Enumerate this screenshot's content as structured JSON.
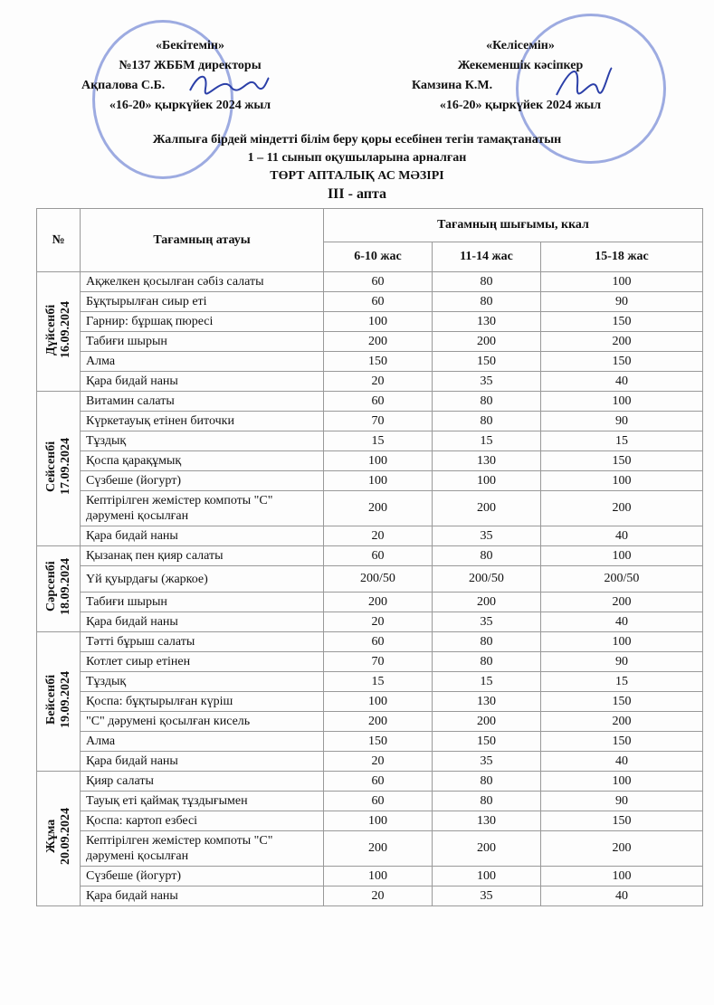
{
  "approve": {
    "title": "«Бекітемін»",
    "role": "№137 ЖББМ директоры",
    "name": "Ақпалова С.Б.",
    "date": "«16-20» қыркүйек 2024 жыл"
  },
  "agree": {
    "title": "«Келісемін»",
    "role": "Жекеменшік кәсіпкер",
    "name": "Камзина К.М.",
    "date": "«16-20» қыркүйек 2024 жыл"
  },
  "titles": [
    "Жалпыға бірдей міндетті білім беру қоры есебінен тегін тамақтанатын",
    "1 – 11 сынып оқушыларына арналған",
    "ТӨРТ АПТАЛЫҚ АС МӘЗІРІ",
    "III - апта"
  ],
  "table": {
    "col_no": "№",
    "col_name": "Тағамның атауы",
    "col_group": "Тағамның шығымы, ккал",
    "ages": [
      "6-10 жас",
      "11-14 жас",
      "15-18 жас"
    ],
    "days": [
      {
        "day": "Дүйсенбі",
        "date": "16.09.2024",
        "rows": [
          [
            "Ақжелкен қосылған сәбіз салаты",
            "60",
            "80",
            "100"
          ],
          [
            "Бұқтырылған сиыр еті",
            "60",
            "80",
            "90"
          ],
          [
            "Гарнир: бұршақ пюресі",
            "100",
            "130",
            "150"
          ],
          [
            "Табиғи шырын",
            "200",
            "200",
            "200"
          ],
          [
            "Алма",
            "150",
            "150",
            "150"
          ],
          [
            "Қара бидай наны",
            "20",
            "35",
            "40"
          ]
        ]
      },
      {
        "day": "Сейсенбі",
        "date": "17.09.2024",
        "rows": [
          [
            "Витамин салаты",
            "60",
            "80",
            "100"
          ],
          [
            "Күркетауық етінен биточки",
            "70",
            "80",
            "90"
          ],
          [
            "Тұздық",
            "15",
            "15",
            "15"
          ],
          [
            "Қоспа қарақұмық",
            "100",
            "130",
            "150"
          ],
          [
            "Сүзбеше (йогурт)",
            "100",
            "100",
            "100"
          ],
          [
            "Кептірілген жемістер компоты \"С\"\nдәрумені қосылған",
            "200",
            "200",
            "200"
          ],
          [
            "Қара бидай наны",
            "20",
            "35",
            "40"
          ]
        ]
      },
      {
        "day": "Сәрсенбі",
        "date": "18.09.2024",
        "rows": [
          [
            "Қызанақ пен қияр салаты",
            "60",
            "80",
            "100"
          ],
          [
            "Үй қуырдағы (жаркое)",
            "200/50",
            "200/50",
            "200/50"
          ],
          [
            "Табиғи шырын",
            "200",
            "200",
            "200"
          ],
          [
            "Қара бидай наны",
            "20",
            "35",
            "40"
          ]
        ]
      },
      {
        "day": "Бейсенбі",
        "date": "19.09.2024",
        "rows": [
          [
            "Тәтті бұрыш салаты",
            "60",
            "80",
            "100"
          ],
          [
            "Котлет сиыр етінен",
            "70",
            "80",
            "90"
          ],
          [
            "Тұздық",
            "15",
            "15",
            "15"
          ],
          [
            "Қоспа: бұқтырылған күріш",
            "100",
            "130",
            "150"
          ],
          [
            "\"С\" дәрумені қосылған кисель",
            "200",
            "200",
            "200"
          ],
          [
            "Алма",
            "150",
            "150",
            "150"
          ],
          [
            "Қара бидай наны",
            "20",
            "35",
            "40"
          ]
        ]
      },
      {
        "day": "Жұма",
        "date": "20.09.2024",
        "rows": [
          [
            "Қияр салаты",
            "60",
            "80",
            "100"
          ],
          [
            "Тауық еті қаймақ тұздығымен",
            "60",
            "80",
            "90"
          ],
          [
            "Қоспа: картоп езбесі",
            "100",
            "130",
            "150"
          ],
          [
            "Кептірілген жемістер компоты \"С\"\nдәрумені қосылған",
            "200",
            "200",
            "200"
          ],
          [
            "Сүзбеше (йогурт)",
            "100",
            "100",
            "100"
          ],
          [
            "Қара бидай наны",
            "20",
            "35",
            "40"
          ]
        ]
      }
    ]
  }
}
